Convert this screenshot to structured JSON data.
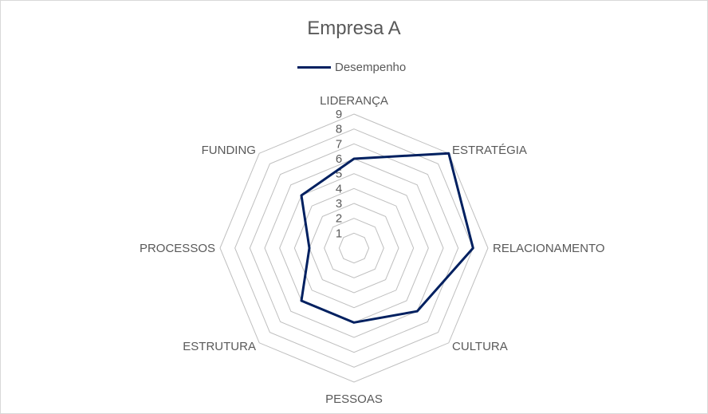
{
  "chart_data": {
    "type": "radar",
    "title": "Empresa A",
    "legend_position": "top",
    "categories": [
      "LIDERANÇA",
      "ESTRATÉGIA",
      "RELACIONAMENTO",
      "CULTURA",
      "PESSOAS",
      "ESTRUTURA",
      "PROCESSOS",
      "FUNDING"
    ],
    "series": [
      {
        "name": "Desempenho",
        "color": "#002060",
        "values": [
          6,
          9,
          8,
          6,
          5,
          5,
          3,
          5
        ]
      }
    ],
    "r_ticks": [
      1,
      2,
      3,
      4,
      5,
      6,
      7,
      8,
      9
    ],
    "rlim": [
      0,
      9
    ],
    "grid": true
  }
}
